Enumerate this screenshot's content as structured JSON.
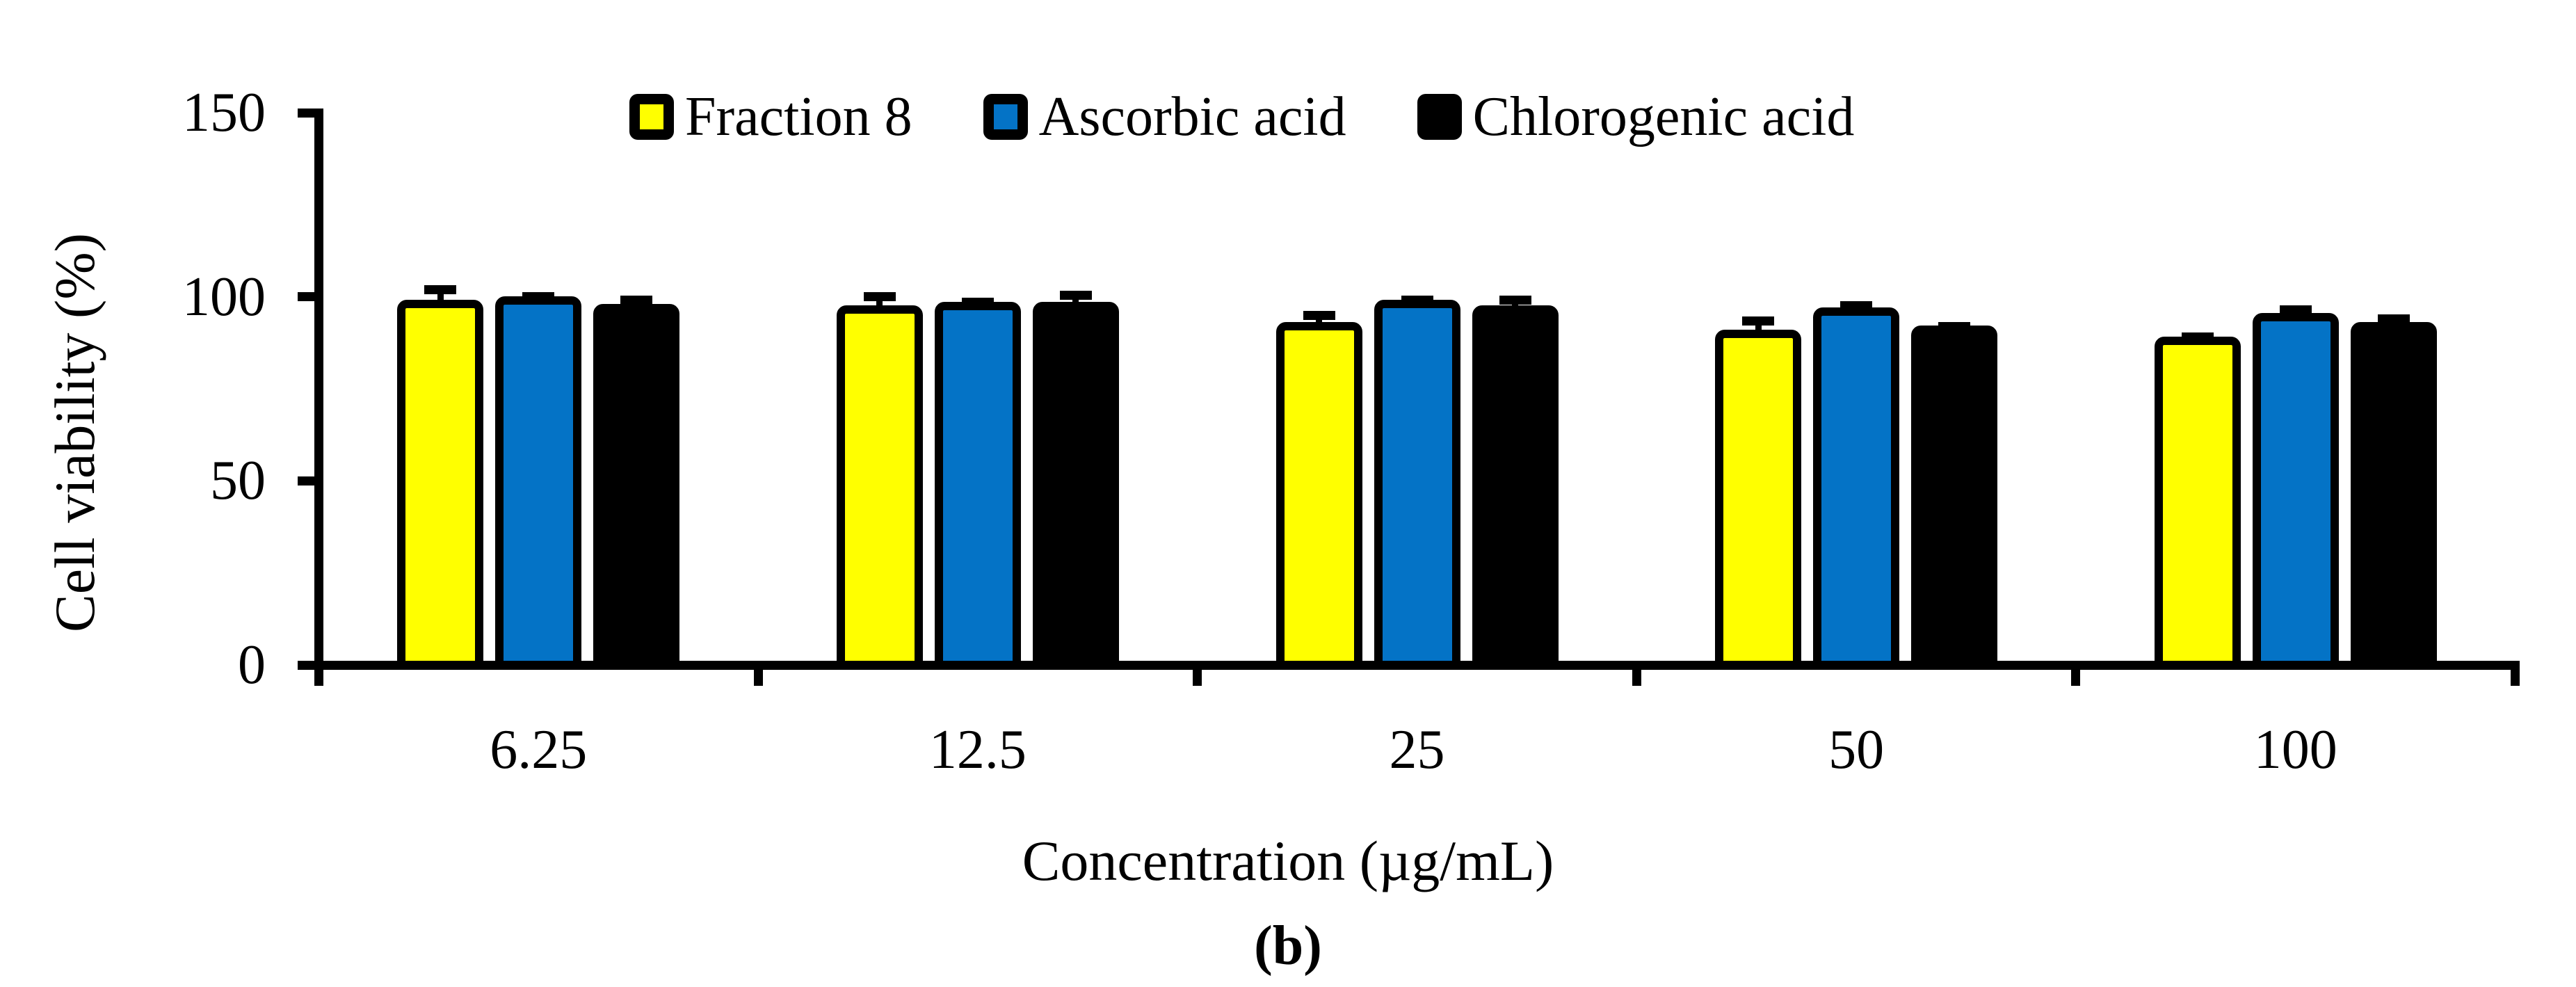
{
  "figure": {
    "panel_label": "(b)"
  },
  "chart_data": {
    "type": "bar",
    "title": "",
    "xlabel": "Concentration (µg/mL)",
    "ylabel": "Cell viability (%)",
    "ylim": [
      0,
      150
    ],
    "yticks": [
      "0",
      "50",
      "100",
      "150"
    ],
    "grid": false,
    "legend_position": "top",
    "background_color": "#FFFFFF",
    "axis_color": "#000000",
    "bar_outline_color": "#000000",
    "categories": [
      "6.25",
      "12.5",
      "25",
      "50",
      "100"
    ],
    "series": [
      {
        "name": "Fraction 8",
        "color": "#FFFF00",
        "values": [
          98,
          96.5,
          92,
          90,
          88
        ],
        "errors": [
          4,
          3.5,
          3,
          3.5,
          1
        ]
      },
      {
        "name": "Ascorbic acid",
        "color": "#0473C6",
        "values": [
          99,
          97.5,
          98,
          96,
          94.5
        ],
        "errors": [
          1,
          1,
          1,
          1.5,
          2
        ]
      },
      {
        "name": "Chlorogenic acid",
        "color": "#000000",
        "values": [
          97,
          97.5,
          96.5,
          91,
          92
        ],
        "errors": [
          2,
          3,
          2.5,
          1,
          2
        ]
      }
    ]
  }
}
